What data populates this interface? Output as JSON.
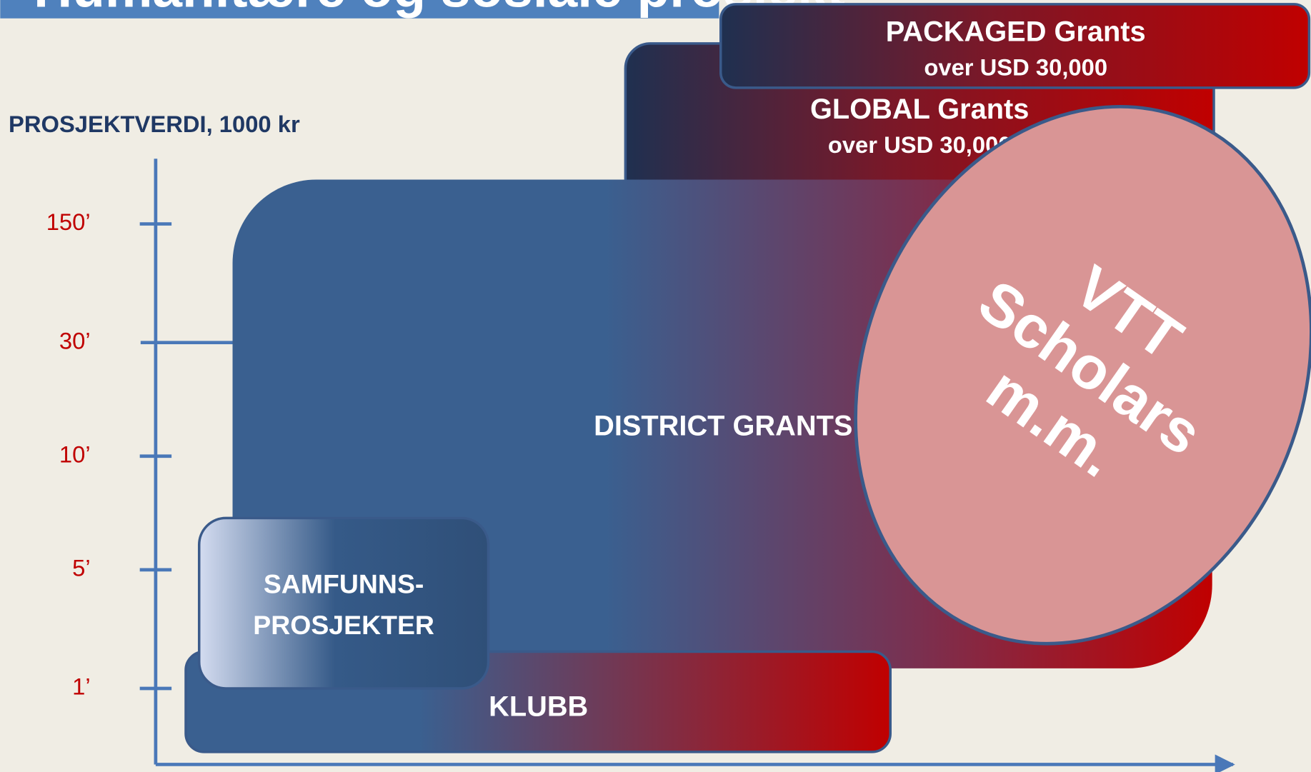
{
  "header": {
    "title": "Humanitære og sosiale prosjekt"
  },
  "axis": {
    "label": "PROSJEKTVERDI, 1000 kr",
    "ticks": [
      "150’",
      "30’",
      "10’",
      "5’",
      "1’"
    ]
  },
  "boxes": {
    "packaged": {
      "title": "PACKAGED Grants",
      "subtitle": "over USD 30,000"
    },
    "global": {
      "title": "GLOBAL Grants",
      "subtitle": "over USD 30,000"
    },
    "district": {
      "title": "DISTRICT GRANTS"
    },
    "samfunns": {
      "line1": "SAMFUNNS-",
      "line2": "PROSJEKTER"
    },
    "klubb": {
      "title": "KLUBB"
    },
    "vtt": {
      "line1": "VTT",
      "line2": "Scholars",
      "line3": "m.m."
    }
  }
}
